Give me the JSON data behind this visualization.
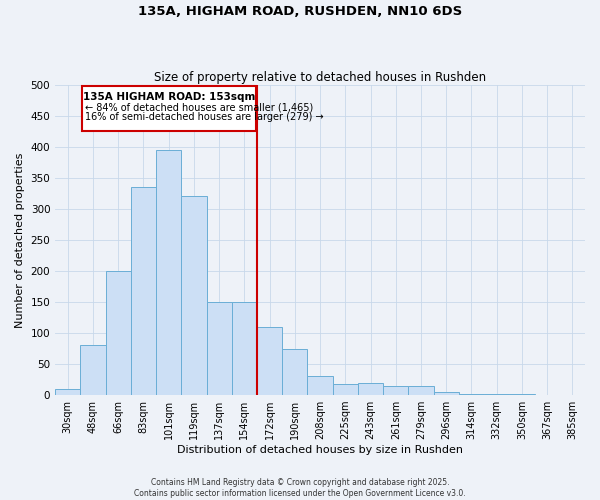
{
  "title": "135A, HIGHAM ROAD, RUSHDEN, NN10 6DS",
  "subtitle": "Size of property relative to detached houses in Rushden",
  "xlabel": "Distribution of detached houses by size in Rushden",
  "ylabel": "Number of detached properties",
  "bar_labels": [
    "30sqm",
    "48sqm",
    "66sqm",
    "83sqm",
    "101sqm",
    "119sqm",
    "137sqm",
    "154sqm",
    "172sqm",
    "190sqm",
    "208sqm",
    "225sqm",
    "243sqm",
    "261sqm",
    "279sqm",
    "296sqm",
    "314sqm",
    "332sqm",
    "350sqm",
    "367sqm",
    "385sqm"
  ],
  "bar_values": [
    10,
    80,
    200,
    335,
    395,
    320,
    150,
    150,
    110,
    75,
    30,
    18,
    20,
    15,
    15,
    5,
    2,
    1,
    1,
    0,
    0
  ],
  "bar_color": "#ccdff5",
  "bar_edge_color": "#6aaed6",
  "vline_color": "#cc0000",
  "annotation_title": "135A HIGHAM ROAD: 153sqm",
  "annotation_line1": "← 84% of detached houses are smaller (1,465)",
  "annotation_line2": "16% of semi-detached houses are larger (279) →",
  "annotation_box_color": "#cc0000",
  "ylim": [
    0,
    500
  ],
  "yticks": [
    0,
    50,
    100,
    150,
    200,
    250,
    300,
    350,
    400,
    450,
    500
  ],
  "grid_color": "#c8d8ea",
  "footer_line1": "Contains HM Land Registry data © Crown copyright and database right 2025.",
  "footer_line2": "Contains public sector information licensed under the Open Government Licence v3.0.",
  "bg_color": "#eef2f8"
}
